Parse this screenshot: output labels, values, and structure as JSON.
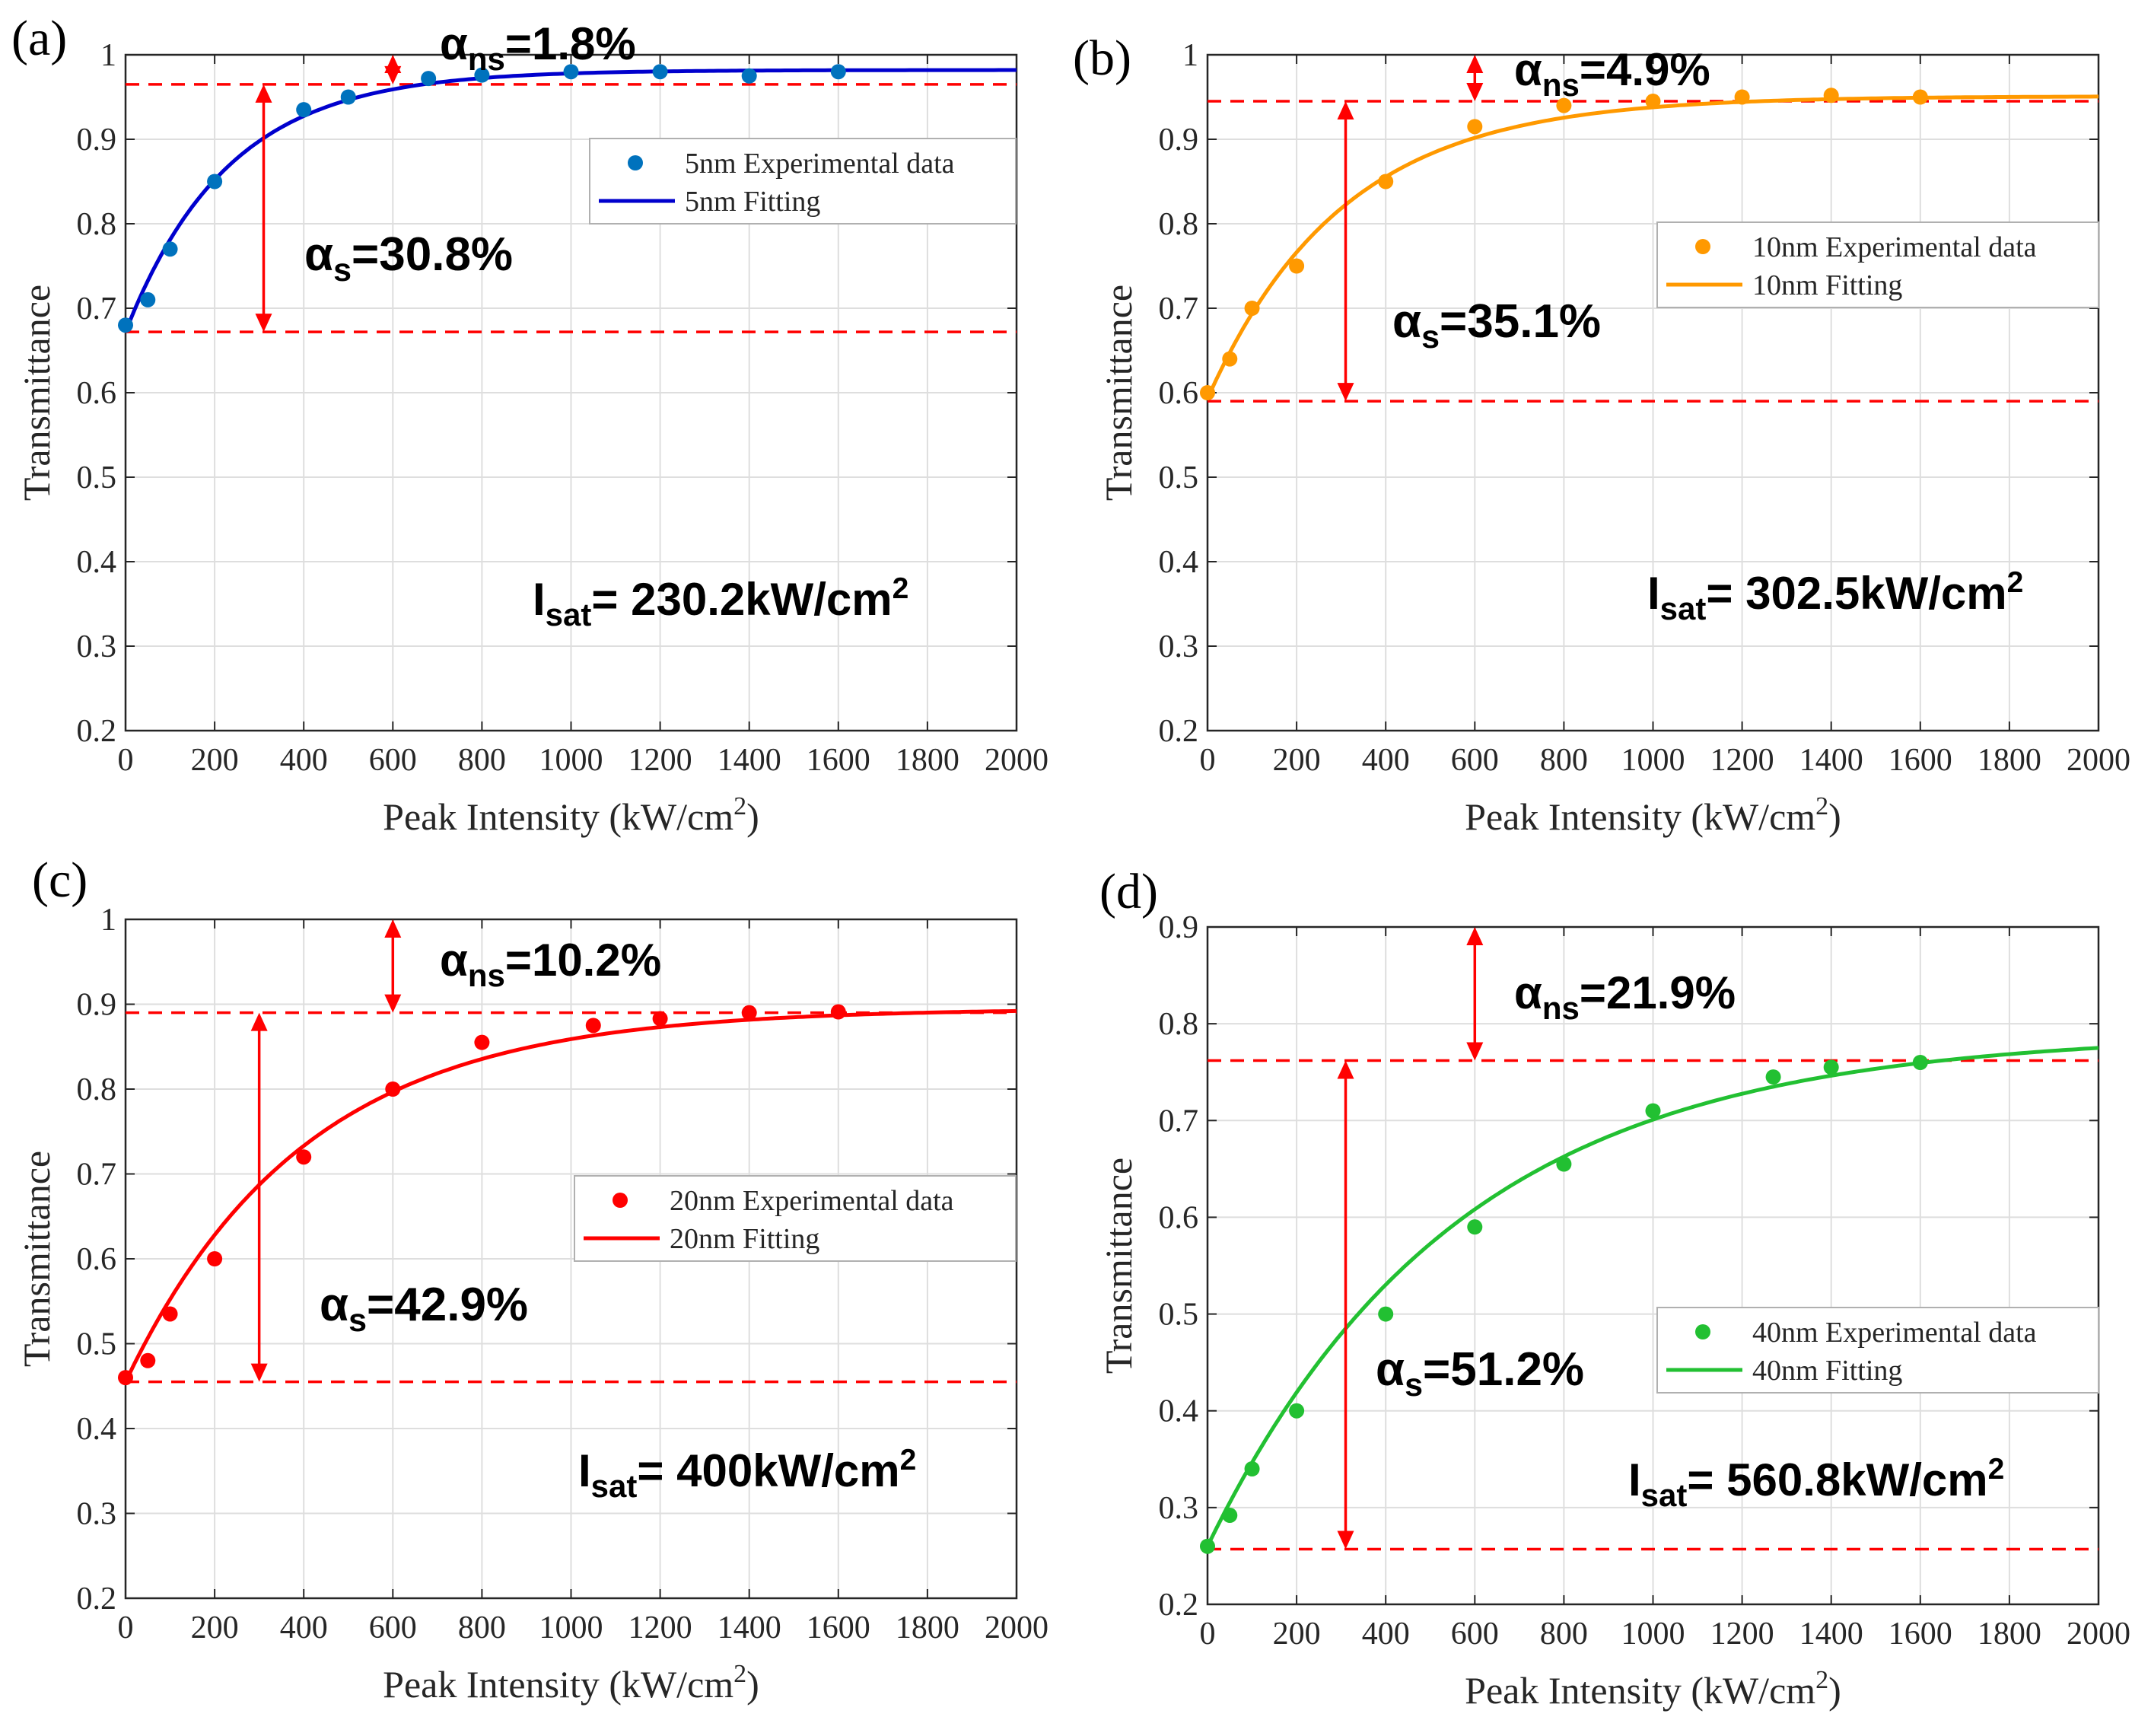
{
  "colors": {
    "guide": "#ff0000",
    "grid": "#dedede",
    "axis": "#262626"
  },
  "xlabel": {
    "main": "Peak Intensity (kW/cm",
    "sup": "2",
    "close": ")"
  },
  "chart_data": [
    {
      "type": "scatter",
      "panel": "(a)",
      "color": "#0072bd",
      "fit_color": "#0000cd",
      "xlim": [
        0,
        2000
      ],
      "ylim": [
        0.2,
        1
      ],
      "xticks": [
        0,
        200,
        400,
        600,
        800,
        1000,
        1200,
        1400,
        1600,
        1800,
        2000
      ],
      "yticks": [
        "0.2",
        "0.3",
        "0.4",
        "0.5",
        "0.6",
        "0.7",
        "0.8",
        "0.9",
        "1"
      ],
      "xlabel": "Peak Intensity (kW/cm2)",
      "ylabel": "Transmittance",
      "legend_position": "top-right",
      "legend": [
        "5nm Experimental data",
        "5nm Fitting"
      ],
      "x": [
        0,
        50,
        100,
        200,
        400,
        500,
        680,
        800,
        1000,
        1200,
        1400,
        1600
      ],
      "y": [
        0.68,
        0.71,
        0.77,
        0.85,
        0.935,
        0.95,
        0.972,
        0.976,
        0.98,
        0.98,
        0.975,
        0.98
      ],
      "fit": {
        "T0": 0.672,
        "Tmax": 0.982,
        "tau": 230.2
      },
      "guides": [
        0.965,
        0.672
      ],
      "arrow_ns": {
        "x": 600,
        "y_top": 1.0,
        "y_bottom": 0.965
      },
      "arrow_s": {
        "x": 310,
        "y_top": 0.965,
        "y_bottom": 0.672
      },
      "alpha_ns": {
        "prefix": "α",
        "sub": "ns",
        "value": "=1.8%"
      },
      "alpha_s": {
        "prefix": "α",
        "sub": "s",
        "value": "=30.8%"
      },
      "isat": {
        "prefix": "I",
        "sub": "sat",
        "value": "= 230.2kW/cm",
        "sup": "2"
      }
    },
    {
      "type": "scatter",
      "panel": "(b)",
      "color": "#ff9900",
      "fit_color": "#ff9900",
      "xlim": [
        0,
        2000
      ],
      "ylim": [
        0.2,
        1
      ],
      "xticks": [
        0,
        200,
        400,
        600,
        800,
        1000,
        1200,
        1400,
        1600,
        1800,
        2000
      ],
      "yticks": [
        "0.2",
        "0.3",
        "0.4",
        "0.5",
        "0.6",
        "0.7",
        "0.8",
        "0.9",
        "1"
      ],
      "xlabel": "Peak Intensity (kW/cm2)",
      "ylabel": "Transmittance",
      "legend_position": "top-right",
      "legend": [
        "10nm Experimental data",
        "10nm Fitting"
      ],
      "x": [
        0,
        50,
        100,
        200,
        400,
        600,
        800,
        1000,
        1200,
        1400,
        1600
      ],
      "y": [
        0.6,
        0.64,
        0.7,
        0.75,
        0.85,
        0.915,
        0.94,
        0.945,
        0.95,
        0.952,
        0.95
      ],
      "fit": {
        "T0": 0.593,
        "Tmax": 0.951,
        "tau": 302.5
      },
      "guides": [
        0.945,
        0.59
      ],
      "arrow_ns": {
        "x": 600,
        "y_top": 1.0,
        "y_bottom": 0.945
      },
      "arrow_s": {
        "x": 310,
        "y_top": 0.945,
        "y_bottom": 0.59
      },
      "alpha_ns": {
        "prefix": "α",
        "sub": "ns",
        "value": "=4.9%"
      },
      "alpha_s": {
        "prefix": "α",
        "sub": "s",
        "value": "=35.1%"
      },
      "isat": {
        "prefix": "I",
        "sub": "sat",
        "value": "= 302.5kW/cm",
        "sup": "2"
      }
    },
    {
      "type": "scatter",
      "panel": "(c)",
      "color": "#ff0000",
      "fit_color": "#ff0000",
      "xlim": [
        0,
        2000
      ],
      "ylim": [
        0.2,
        1
      ],
      "xticks": [
        0,
        200,
        400,
        600,
        800,
        1000,
        1200,
        1400,
        1600,
        1800,
        2000
      ],
      "yticks": [
        "0.2",
        "0.3",
        "0.4",
        "0.5",
        "0.6",
        "0.7",
        "0.8",
        "0.9",
        "1"
      ],
      "xlabel": "Peak Intensity (kW/cm2)",
      "ylabel": "Transmittance",
      "legend_position": "center-right",
      "legend": [
        "20nm Experimental data",
        "20nm Fitting"
      ],
      "x": [
        0,
        50,
        100,
        200,
        400,
        600,
        800,
        1050,
        1200,
        1400,
        1600
      ],
      "y": [
        0.46,
        0.48,
        0.535,
        0.6,
        0.72,
        0.8,
        0.855,
        0.875,
        0.883,
        0.89,
        0.891
      ],
      "fit": {
        "T0": 0.455,
        "Tmax": 0.895,
        "tau": 400
      },
      "guides": [
        0.89,
        0.455
      ],
      "arrow_ns": {
        "x": 600,
        "y_top": 1.0,
        "y_bottom": 0.89
      },
      "arrow_s": {
        "x": 300,
        "y_top": 0.89,
        "y_bottom": 0.455
      },
      "alpha_ns": {
        "prefix": "α",
        "sub": "ns",
        "value": "=10.2%"
      },
      "alpha_s": {
        "prefix": "α",
        "sub": "s",
        "value": "=42.9%"
      },
      "isat": {
        "prefix": "I",
        "sub": "sat",
        "value": "= 400kW/cm",
        "sup": "2"
      }
    },
    {
      "type": "scatter",
      "panel": "(d)",
      "color": "#22c032",
      "fit_color": "#22c032",
      "xlim": [
        0,
        2000
      ],
      "ylim": [
        0.2,
        0.9
      ],
      "xticks": [
        0,
        200,
        400,
        600,
        800,
        1000,
        1200,
        1400,
        1600,
        1800,
        2000
      ],
      "yticks": [
        "0.2",
        "0.3",
        "0.4",
        "0.5",
        "0.6",
        "0.7",
        "0.8",
        "0.9"
      ],
      "xlabel": "Peak Intensity (kW/cm2)",
      "ylabel": "Transmittance",
      "legend_position": "center-right",
      "legend": [
        "40nm Experimental data",
        "40nm Fitting"
      ],
      "x": [
        0,
        50,
        100,
        200,
        400,
        600,
        800,
        1000,
        1270,
        1400,
        1600
      ],
      "y": [
        0.26,
        0.292,
        0.34,
        0.4,
        0.5,
        0.59,
        0.655,
        0.71,
        0.745,
        0.755,
        0.76
      ],
      "fit": {
        "T0": 0.26,
        "Tmax": 0.79,
        "tau": 560.8
      },
      "guides": [
        0.762,
        0.257
      ],
      "arrow_ns": {
        "x": 600,
        "y_top": 0.9,
        "y_bottom": 0.762
      },
      "arrow_s": {
        "x": 310,
        "y_top": 0.762,
        "y_bottom": 0.257
      },
      "alpha_ns": {
        "prefix": "α",
        "sub": "ns",
        "value": "=21.9%"
      },
      "alpha_s": {
        "prefix": "α",
        "sub": "s",
        "value": "=51.2%"
      },
      "isat": {
        "prefix": "I",
        "sub": "sat",
        "value": "= 560.8kW/cm",
        "sup": "2"
      }
    }
  ]
}
